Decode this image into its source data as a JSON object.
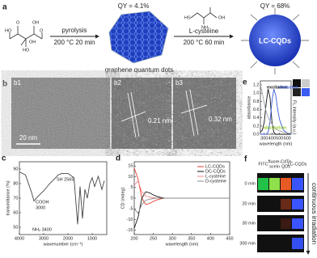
{
  "panel_a": {
    "label": "a",
    "qy_left": "QY = 4.1%",
    "qy_right": "QY = 68%",
    "step1_reagent": "pyrolysis",
    "step1_conditions": "200 °C   20 min",
    "product1": "graphene quantum dots",
    "step2_reagent": "L-cysteine",
    "step2_conditions": "200 °C   60 min",
    "product2": "LC-CQDs"
  },
  "panel_b": {
    "label": "b",
    "images": [
      "b1",
      "b2",
      "b3"
    ],
    "scale_bar": "20 nm",
    "spacing_1": "0.21 nm",
    "spacing_2": "0.32 nm"
  },
  "panel_f": {
    "label": "f",
    "columns": [
      [
        "FITC"
      ],
      [
        "fluore-",
        "scein"
      ],
      [
        "CdTe",
        "QDs"
      ],
      [
        "LC-CQDs"
      ]
    ],
    "rows": [
      "0 min",
      "20 min",
      "30 min",
      "300 min"
    ],
    "arrow_label": "continuous irradiation"
  },
  "chart_data": [
    {
      "type": "line",
      "panel": "c",
      "xlabel": "wavenumber (cm⁻¹)",
      "ylabel": "transmittance (%)",
      "xlim": [
        4000,
        400
      ],
      "ylim": [
        45,
        95
      ],
      "xticks": [
        4000,
        3000,
        2000,
        1000
      ],
      "yticks": [
        50,
        60,
        70,
        80,
        90
      ],
      "annotations": [
        "SH 2565",
        "COOH",
        "3000",
        "NH₂ 3400"
      ],
      "x": [
        4000,
        3750,
        3500,
        3400,
        3250,
        3000,
        2750,
        2565,
        2400,
        2250,
        2000,
        1750,
        1600,
        1500,
        1400,
        1300,
        1200,
        1100,
        1000,
        900,
        750,
        600,
        500
      ],
      "series": [
        {
          "color": "#444444",
          "values": [
            88,
            86,
            74,
            68,
            71,
            75,
            80,
            83,
            86,
            87,
            87,
            84,
            52,
            78,
            56,
            76,
            70,
            80,
            84,
            78,
            85,
            76,
            82
          ]
        }
      ]
    },
    {
      "type": "line",
      "panel": "d",
      "xlabel": "wavelength (nm)",
      "ylabel": "CD (mdeg)",
      "legend": true,
      "xlim": [
        200,
        450
      ],
      "ylim": [
        -17,
        17
      ],
      "xticks": [
        200,
        250,
        300,
        350,
        400,
        450
      ],
      "yticks": [
        -15,
        -10,
        -5,
        0,
        5,
        10,
        15
      ],
      "x": [
        200,
        210,
        220,
        230,
        240,
        250,
        260,
        270,
        280,
        300,
        325,
        350,
        400,
        450
      ],
      "series": [
        {
          "name": "LC-CQDs",
          "color": "#e23a2e",
          "values": [
            14,
            9,
            0,
            -3,
            -2.5,
            -1.5,
            -0.8,
            -0.3,
            0,
            0,
            0,
            0,
            0,
            0
          ]
        },
        {
          "name": "DC-CQDs",
          "color": "#111111",
          "values": [
            -14,
            -9,
            0,
            3,
            2.5,
            1.5,
            0.8,
            0.3,
            0,
            0,
            0,
            0,
            0,
            0
          ]
        },
        {
          "name": "L-cysteine",
          "color": "#f08a8a",
          "values": [
            6,
            8,
            3,
            1,
            0.5,
            0.2,
            0,
            0,
            0,
            0,
            0,
            0,
            0,
            0
          ]
        },
        {
          "name": "D-cysteine",
          "color": "#888888",
          "values": [
            -5,
            -7,
            -3,
            -1,
            -0.5,
            -0.2,
            0,
            0,
            0,
            0,
            0,
            0,
            0,
            0
          ]
        }
      ]
    },
    {
      "type": "line",
      "panel": "e",
      "xlabel": "wavelength (nm)",
      "ylabel": "absorbance",
      "y2label": "FL intensity (a.u.)",
      "xlim": [
        250,
        650
      ],
      "ylim": [
        0,
        1.3
      ],
      "xticks": [
        300,
        400,
        500,
        600
      ],
      "yticks": [
        {
          "value": 0,
          "label": "0.0"
        },
        0.2,
        0.4,
        0.6,
        0.8,
        {
          "value": 1,
          "label": "1.0"
        },
        1.2
      ],
      "x": [
        250,
        275,
        300,
        325,
        350,
        375,
        400,
        425,
        450,
        475,
        500,
        550,
        600,
        650
      ],
      "series": [
        {
          "name": "excitation",
          "color": "#111111",
          "values": [
            0.05,
            0.1,
            0.3,
            0.75,
            1.1,
            0.9,
            0.3,
            0.05,
            0,
            0,
            0,
            0,
            0,
            0
          ]
        },
        {
          "name": "emission",
          "color": "#3a5bd9",
          "values": [
            0,
            0,
            0,
            0,
            0.05,
            0.3,
            0.8,
            1.1,
            0.95,
            0.6,
            0.35,
            0.1,
            0.03,
            0
          ]
        },
        {
          "name": "absorption",
          "color": "#9aa0a6",
          "values": [
            1.2,
            1.0,
            0.75,
            0.55,
            0.42,
            0.32,
            0.25,
            0.18,
            0.13,
            0.1,
            0.08,
            0.05,
            0.03,
            0.02
          ]
        }
      ]
    }
  ]
}
